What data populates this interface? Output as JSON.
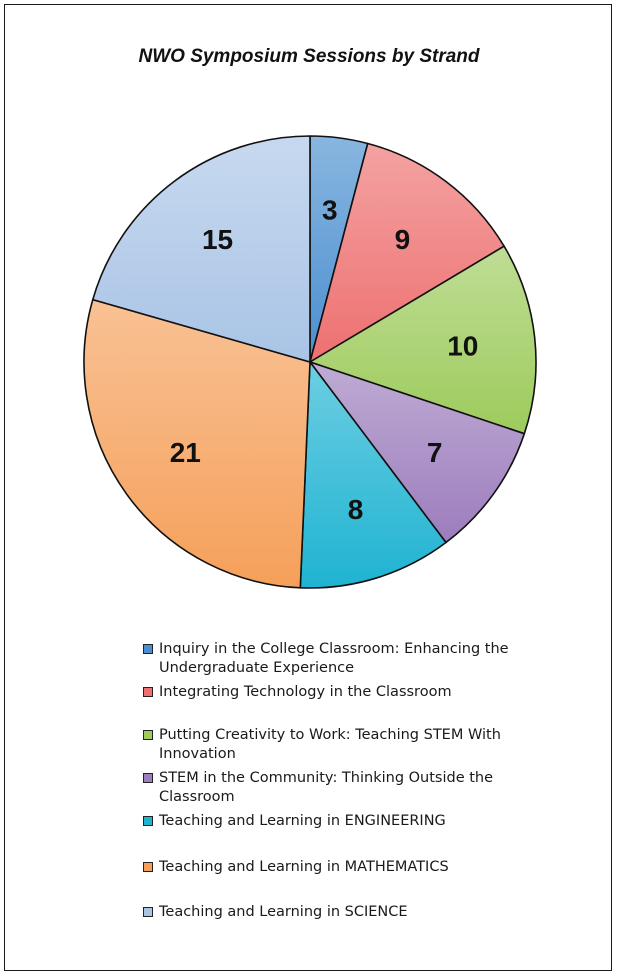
{
  "chart_data": {
    "type": "pie",
    "title": "NWO Symposium Sessions by Strand",
    "slices": [
      {
        "label": "Inquiry in the College Classroom: Enhancing the Undergraduate Experience",
        "value": 3,
        "color": "#4a8fd0"
      },
      {
        "label": "Integrating Technology in the Classroom",
        "value": 9,
        "color": "#ee7070"
      },
      {
        "label": "Putting Creativity to Work: Teaching STEM With Innovation",
        "value": 10,
        "color": "#9dcb5c"
      },
      {
        "label": "STEM in the Community: Thinking Outside the Classroom",
        "value": 7,
        "color": "#9c7dbd"
      },
      {
        "label": "Teaching and Learning in ENGINEERING",
        "value": 8,
        "color": "#1fb3d2"
      },
      {
        "label": "Teaching and Learning in MATHEMATICS",
        "value": 21,
        "color": "#f5a05a"
      },
      {
        "label": "Teaching and Learning in SCIENCE",
        "value": 15,
        "color": "#a9c4e6"
      }
    ],
    "legend_position": "bottom"
  }
}
